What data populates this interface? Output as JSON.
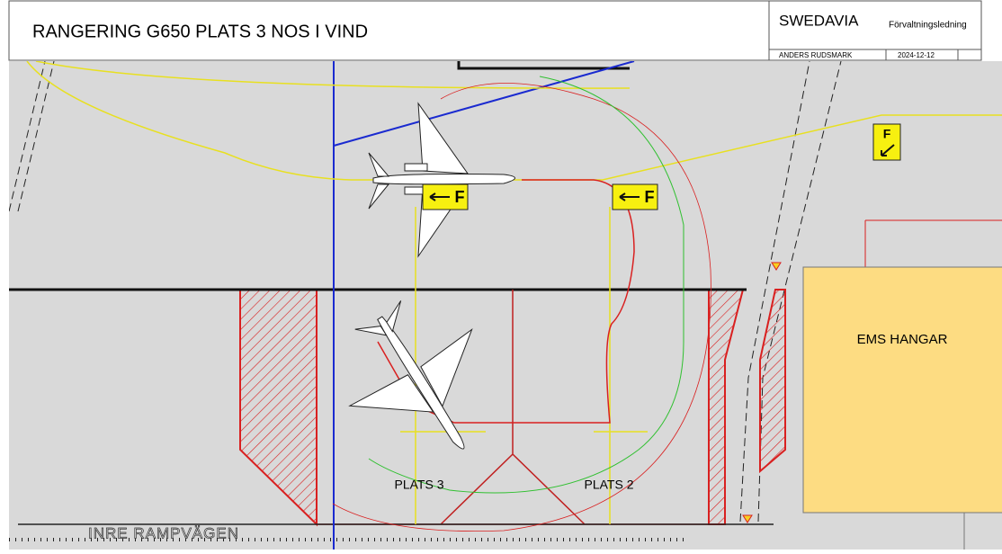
{
  "header": {
    "title": "RANGERING G650 PLATS 3 NOS I VIND",
    "company": "SWEDAVIA",
    "department": "Förvaltningsledning",
    "author": "ANDERS RUDSMARK",
    "date": "2024-12-12"
  },
  "labels": {
    "hangar": "EMS HANGAR",
    "stand_3": "PLATS 3",
    "stand_2": "PLATS 2",
    "road": "INRE RAMPVÄGEN"
  },
  "signs": [
    "F",
    "F",
    "F"
  ]
}
